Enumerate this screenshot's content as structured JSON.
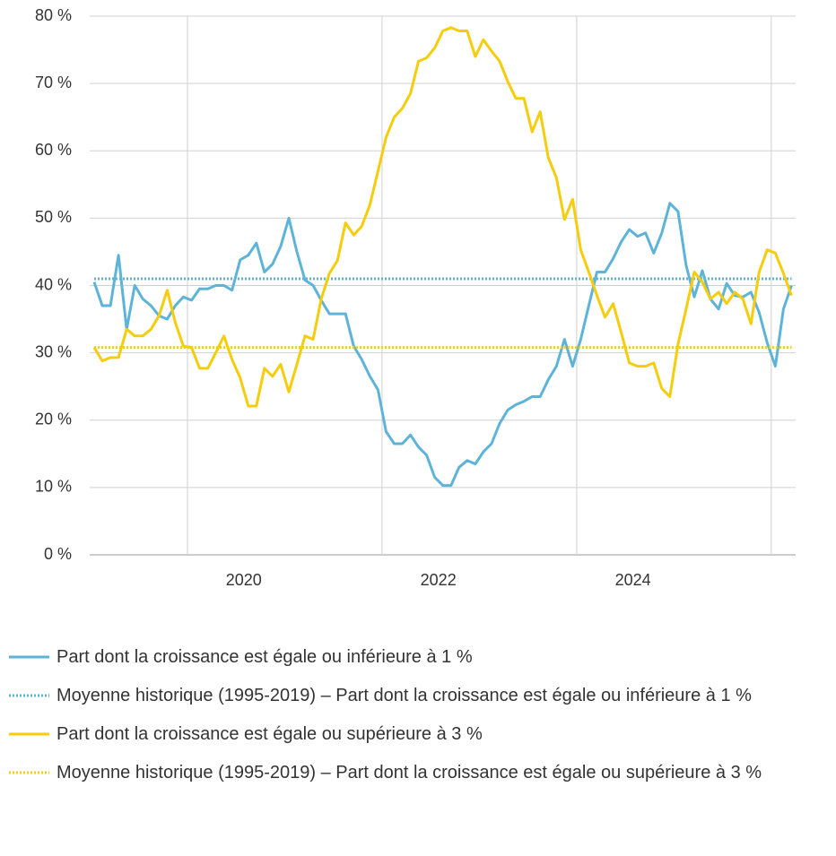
{
  "chart_data": {
    "type": "line",
    "categories": [
      null,
      null,
      null,
      null,
      null,
      null,
      null,
      null,
      null,
      null,
      null,
      null,
      null,
      null,
      null,
      null,
      null,
      null,
      "2020",
      null,
      null,
      null,
      null,
      null,
      null,
      null,
      null,
      null,
      null,
      null,
      null,
      null,
      null,
      null,
      null,
      null,
      null,
      null,
      null,
      null,
      null,
      null,
      "2022",
      null,
      null,
      null,
      null,
      null,
      null,
      null,
      null,
      null,
      null,
      null,
      null,
      null,
      null,
      null,
      null,
      null,
      null,
      null,
      null,
      null,
      null,
      null,
      "2024",
      null,
      null,
      null,
      null,
      null,
      null,
      null,
      null,
      null,
      null,
      null,
      null,
      null,
      null,
      null,
      null,
      null,
      null,
      null,
      null
    ],
    "series": [
      {
        "name": "Part dont la croissance est égale ou inférieure à 1 %",
        "color": "#5eb3d9",
        "style": "solid",
        "values": [
          40.5,
          37,
          37,
          44.5,
          33.5,
          40,
          38,
          37,
          35.5,
          35,
          37,
          38.3,
          37.8,
          39.5,
          39.5,
          40,
          40,
          39.3,
          43.8,
          44.5,
          46.3,
          42,
          43.2,
          45.8,
          50,
          45,
          40.8,
          40,
          37.8,
          35.8,
          35.8,
          35.8,
          31,
          29,
          26.5,
          24.5,
          18.3,
          16.5,
          16.5,
          17.8,
          16,
          14.8,
          11.5,
          10.3,
          10.3,
          13,
          14,
          13.5,
          15.3,
          16.5,
          19.5,
          21.5,
          22.3,
          22.8,
          23.5,
          23.5,
          26,
          28,
          32,
          28,
          32,
          37,
          42,
          42,
          44,
          46.5,
          48.3,
          47.3,
          47.8,
          44.8,
          47.8,
          52.2,
          51,
          43,
          38.3,
          42.2,
          38,
          36.5,
          40.3,
          38.5,
          38.3,
          39,
          36,
          31.5,
          28,
          36.5,
          40
        ]
      },
      {
        "name": "Moyenne historique (1995-2019) – Part dont la croissance est égale ou inférieure à 1 %",
        "color": "#5eb3d9",
        "style": "dotted",
        "value": 41
      },
      {
        "name": "Part dont la croissance est égale ou supérieure à 3 %",
        "color": "#f5cd0c",
        "style": "solid",
        "values": [
          30.8,
          28.8,
          29.3,
          29.3,
          33.5,
          32.5,
          32.5,
          33.5,
          35.5,
          39.3,
          34.5,
          31,
          30.8,
          27.7,
          27.7,
          30,
          32.5,
          29,
          26.3,
          22.1,
          22.1,
          27.7,
          26.5,
          28.3,
          24.2,
          28.3,
          32.5,
          32,
          38,
          41.8,
          43.7,
          49.3,
          47.5,
          48.8,
          52,
          57,
          62,
          65,
          66.3,
          68.5,
          73.3,
          73.8,
          75.3,
          77.8,
          78.3,
          77.8,
          77.8,
          74,
          76.5,
          74.8,
          73.3,
          70.3,
          67.8,
          67.8,
          62.8,
          65.8,
          59,
          56,
          49.8,
          52.8,
          45.3,
          42,
          38.5,
          35.3,
          37.3,
          33,
          28.5,
          28,
          28,
          28.5,
          24.7,
          23.5,
          31.3,
          36.5,
          42,
          40.5,
          38,
          39,
          37.3,
          39,
          38,
          34.3,
          42,
          45.3,
          44.8,
          41.8,
          38.5
        ]
      },
      {
        "name": "Moyenne historique (1995-2019) – Part dont la croissance est égale ou supérieure à 3 %",
        "color": "#f5cd0c",
        "style": "dotted",
        "value": 30.8
      }
    ],
    "ylim": [
      0,
      80
    ],
    "yticks": [
      {
        "value": 0,
        "label": "0 %"
      },
      {
        "value": 10,
        "label": "10 %"
      },
      {
        "value": 20,
        "label": "20 %"
      },
      {
        "value": 30,
        "label": "30 %"
      },
      {
        "value": 40,
        "label": "40 %"
      },
      {
        "value": 50,
        "label": "50 %"
      },
      {
        "value": 60,
        "label": "60 %"
      },
      {
        "value": 70,
        "label": "70 %"
      },
      {
        "value": 80,
        "label": "80 %"
      }
    ],
    "grid": true
  }
}
